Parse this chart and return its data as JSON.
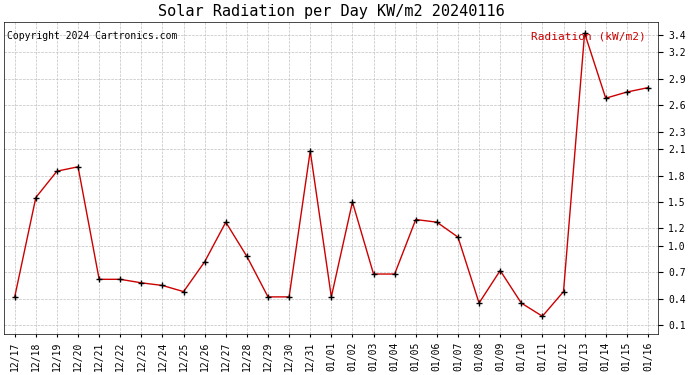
{
  "title": "Solar Radiation per Day KW/m2 20240116",
  "copyright": "Copyright 2024 Cartronics.com",
  "legend_label": "Radiation (kW/m2)",
  "x_labels": [
    "12/17",
    "12/18",
    "12/19",
    "12/20",
    "12/21",
    "12/22",
    "12/23",
    "12/24",
    "12/25",
    "12/26",
    "12/27",
    "12/28",
    "12/29",
    "12/30",
    "12/31",
    "01/01",
    "01/02",
    "01/03",
    "01/04",
    "01/05",
    "01/06",
    "01/07",
    "01/08",
    "01/09",
    "01/10",
    "01/11",
    "01/12",
    "01/13",
    "01/14",
    "01/15",
    "01/16"
  ],
  "y_values": [
    0.42,
    1.55,
    1.85,
    1.9,
    0.62,
    0.62,
    0.58,
    0.55,
    0.48,
    0.82,
    1.27,
    0.88,
    0.42,
    0.42,
    2.08,
    0.42,
    1.5,
    0.68,
    0.68,
    1.3,
    1.27,
    1.1,
    0.35,
    0.72,
    0.35,
    0.2,
    0.48,
    3.42,
    2.68,
    2.75,
    2.8
  ],
  "line_color": "#cc0000",
  "marker": "+",
  "marker_size": 5,
  "background_color": "#ffffff",
  "grid_color": "#c0c0c0",
  "ylim_min": 0.0,
  "ylim_max": 3.55,
  "yticks": [
    0.1,
    0.4,
    0.7,
    1.0,
    1.2,
    1.5,
    1.8,
    2.1,
    2.3,
    2.6,
    2.9,
    3.2,
    3.4
  ],
  "title_fontsize": 11,
  "copyright_fontsize": 7,
  "legend_fontsize": 8,
  "tick_fontsize": 7
}
